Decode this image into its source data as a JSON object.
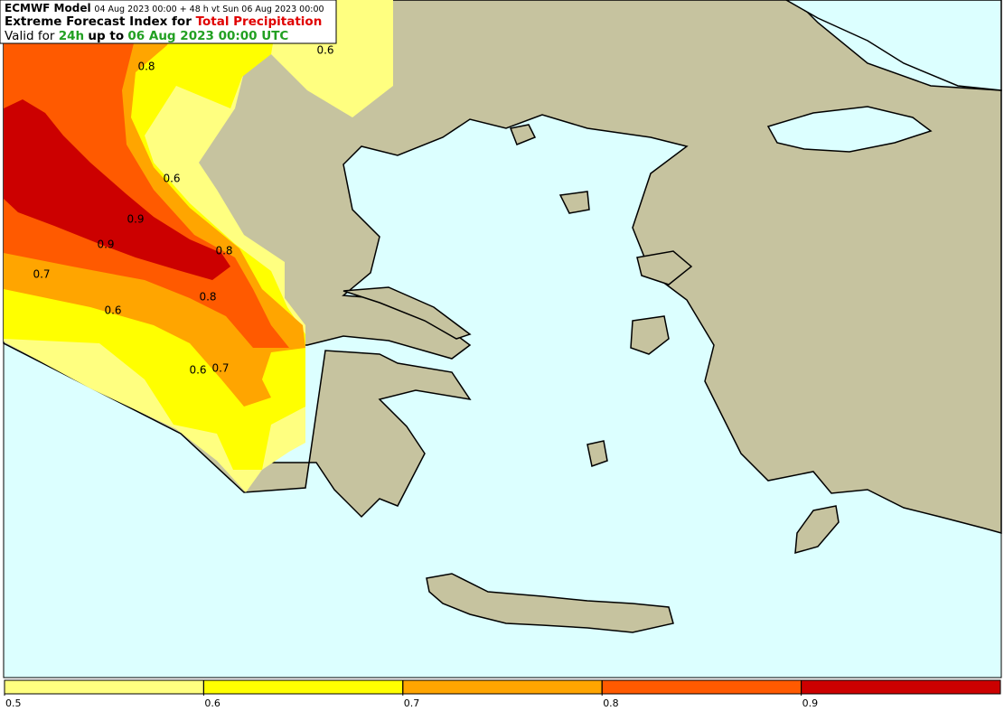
{
  "header": {
    "line1": {
      "model": "ECMWF Model",
      "run": "04 Aug 2023 00:00 + 48 h vt Sun 06 Aug 2023 00:00"
    },
    "line2": {
      "prefix": "Extreme Forecast Index for",
      "parameter": "Total Precipitation"
    },
    "line3": {
      "prefix": "Valid for",
      "period": "24h",
      "middle": "up to",
      "valid": "06 Aug 2023 00:00 UTC"
    }
  },
  "contour_labels": [
    0.8,
    0.6,
    0.6,
    0.9,
    0.9,
    0.8,
    0.7,
    0.8,
    0.6,
    0.6,
    0.7
  ],
  "colorbar": {
    "ticks": [
      0.5,
      0.6,
      0.7,
      0.8,
      0.9
    ],
    "colors": [
      "#ffff80",
      "#ffff00",
      "#ffa500",
      "#ff5a00",
      "#cc0000"
    ]
  }
}
